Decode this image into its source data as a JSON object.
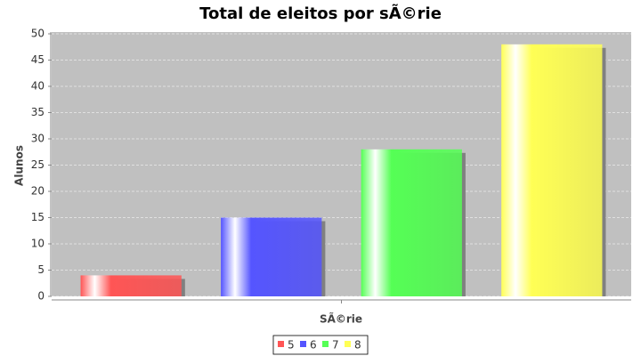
{
  "chart_data": {
    "type": "bar",
    "title": "Total de eleitos por sÃ©rie",
    "x_label": "SÃ©rie",
    "y_label": "Alunos",
    "categories": [
      null
    ],
    "series": [
      {
        "name": "5",
        "color": "#ff5555",
        "values": [
          4
        ]
      },
      {
        "name": "6",
        "color": "#5555ff",
        "values": [
          15
        ]
      },
      {
        "name": "7",
        "color": "#55ff55",
        "values": [
          28
        ]
      },
      {
        "name": "8",
        "color": "#ffff55",
        "values": [
          48
        ]
      }
    ],
    "ylim": [
      0,
      50
    ],
    "yticks": [
      0,
      5,
      10,
      15,
      20,
      25,
      30,
      35,
      40,
      45,
      50
    ],
    "grid": true,
    "legend": "bottom"
  }
}
